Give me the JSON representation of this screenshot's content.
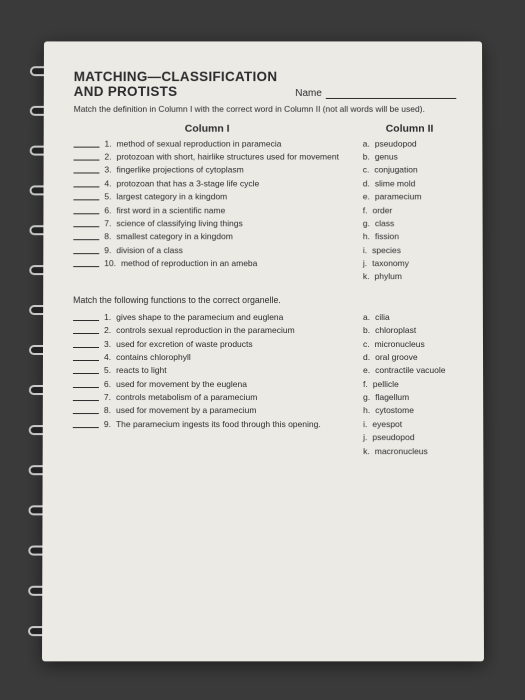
{
  "header": {
    "title_line1": "MATCHING—CLASSIFICATION",
    "title_line2": "AND PROTISTS",
    "name_label": "Name"
  },
  "intro": "Match the definition in Column I with the correct word in Column II (not all words will be used).",
  "col1_head": "Column I",
  "col2_head": "Column II",
  "section1": {
    "questions": [
      {
        "n": "1.",
        "t": "method of sexual reproduction in paramecia"
      },
      {
        "n": "2.",
        "t": "protozoan with short, hairlike structures used for movement"
      },
      {
        "n": "3.",
        "t": "fingerlike projections of cytoplasm"
      },
      {
        "n": "4.",
        "t": "protozoan that has a 3-stage life cycle"
      },
      {
        "n": "5.",
        "t": "largest category in a kingdom"
      },
      {
        "n": "6.",
        "t": "first word in a scientific name"
      },
      {
        "n": "7.",
        "t": "science of classifying living things"
      },
      {
        "n": "8.",
        "t": "smallest category in a kingdom"
      },
      {
        "n": "9.",
        "t": "division of a class"
      },
      {
        "n": "10.",
        "t": "method of reproduction in an ameba"
      }
    ],
    "options": [
      {
        "l": "a.",
        "t": "pseudopod"
      },
      {
        "l": "b.",
        "t": "genus"
      },
      {
        "l": "c.",
        "t": "conjugation"
      },
      {
        "l": "d.",
        "t": "slime mold"
      },
      {
        "l": "e.",
        "t": "paramecium"
      },
      {
        "l": "f.",
        "t": "order"
      },
      {
        "l": "g.",
        "t": "class"
      },
      {
        "l": "h.",
        "t": "fission"
      },
      {
        "l": "i.",
        "t": "species"
      },
      {
        "l": "j.",
        "t": "taxonomy"
      },
      {
        "l": "k.",
        "t": "phylum"
      }
    ]
  },
  "section2_intro": "Match the following functions to the correct organelle.",
  "section2": {
    "questions": [
      {
        "n": "1.",
        "t": "gives shape to the paramecium and euglena"
      },
      {
        "n": "2.",
        "t": "controls sexual reproduction in the paramecium"
      },
      {
        "n": "3.",
        "t": "used for excretion of waste products"
      },
      {
        "n": "4.",
        "t": "contains chlorophyll"
      },
      {
        "n": "5.",
        "t": "reacts to light"
      },
      {
        "n": "6.",
        "t": "used for movement by the euglena"
      },
      {
        "n": "7.",
        "t": "controls metabolism of a paramecium"
      },
      {
        "n": "8.",
        "t": "used for movement by a paramecium"
      },
      {
        "n": "9.",
        "t": "The paramecium ingests its food through this opening."
      }
    ],
    "options": [
      {
        "l": "a.",
        "t": "cilia"
      },
      {
        "l": "b.",
        "t": "chloroplast"
      },
      {
        "l": "c.",
        "t": "micronucleus"
      },
      {
        "l": "d.",
        "t": "oral groove"
      },
      {
        "l": "e.",
        "t": "contractile vacuole"
      },
      {
        "l": "f.",
        "t": "pellicle"
      },
      {
        "l": "g.",
        "t": "flagellum"
      },
      {
        "l": "h.",
        "t": "cytostome"
      },
      {
        "l": "i.",
        "t": "eyespot"
      },
      {
        "l": "j.",
        "t": "pseudopod"
      },
      {
        "l": "k.",
        "t": "macronucleus"
      }
    ]
  },
  "colors": {
    "paper": "#eceae5",
    "text": "#2b2b2b",
    "bg": "#3a3a3a"
  }
}
